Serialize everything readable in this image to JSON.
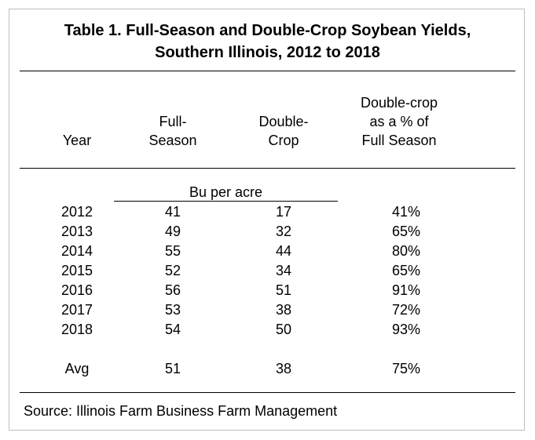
{
  "title": {
    "line1": "Table 1.  Full-Season and Double-Crop Soybean Yields,",
    "line2": "Southern Illinois, 2012 to 2018"
  },
  "columns": {
    "year": "Year",
    "full_season": [
      "Full-",
      "Season"
    ],
    "double_crop": [
      "Double-",
      "Crop"
    ],
    "pct": [
      "Double-crop",
      "as a % of",
      "Full Season"
    ]
  },
  "units": "Bu per acre",
  "rows": [
    {
      "year": "2012",
      "full": "41",
      "double": "17",
      "pct": "41%"
    },
    {
      "year": "2013",
      "full": "49",
      "double": "32",
      "pct": "65%"
    },
    {
      "year": "2014",
      "full": "55",
      "double": "44",
      "pct": "80%"
    },
    {
      "year": "2015",
      "full": "52",
      "double": "34",
      "pct": "65%"
    },
    {
      "year": "2016",
      "full": "56",
      "double": "51",
      "pct": "91%"
    },
    {
      "year": "2017",
      "full": "53",
      "double": "38",
      "pct": "72%"
    },
    {
      "year": "2018",
      "full": "54",
      "double": "50",
      "pct": "93%"
    }
  ],
  "avg": {
    "year": "Avg",
    "full": "51",
    "double": "38",
    "pct": "75%"
  },
  "source": "Source:  Illinois Farm Business Farm Management"
}
